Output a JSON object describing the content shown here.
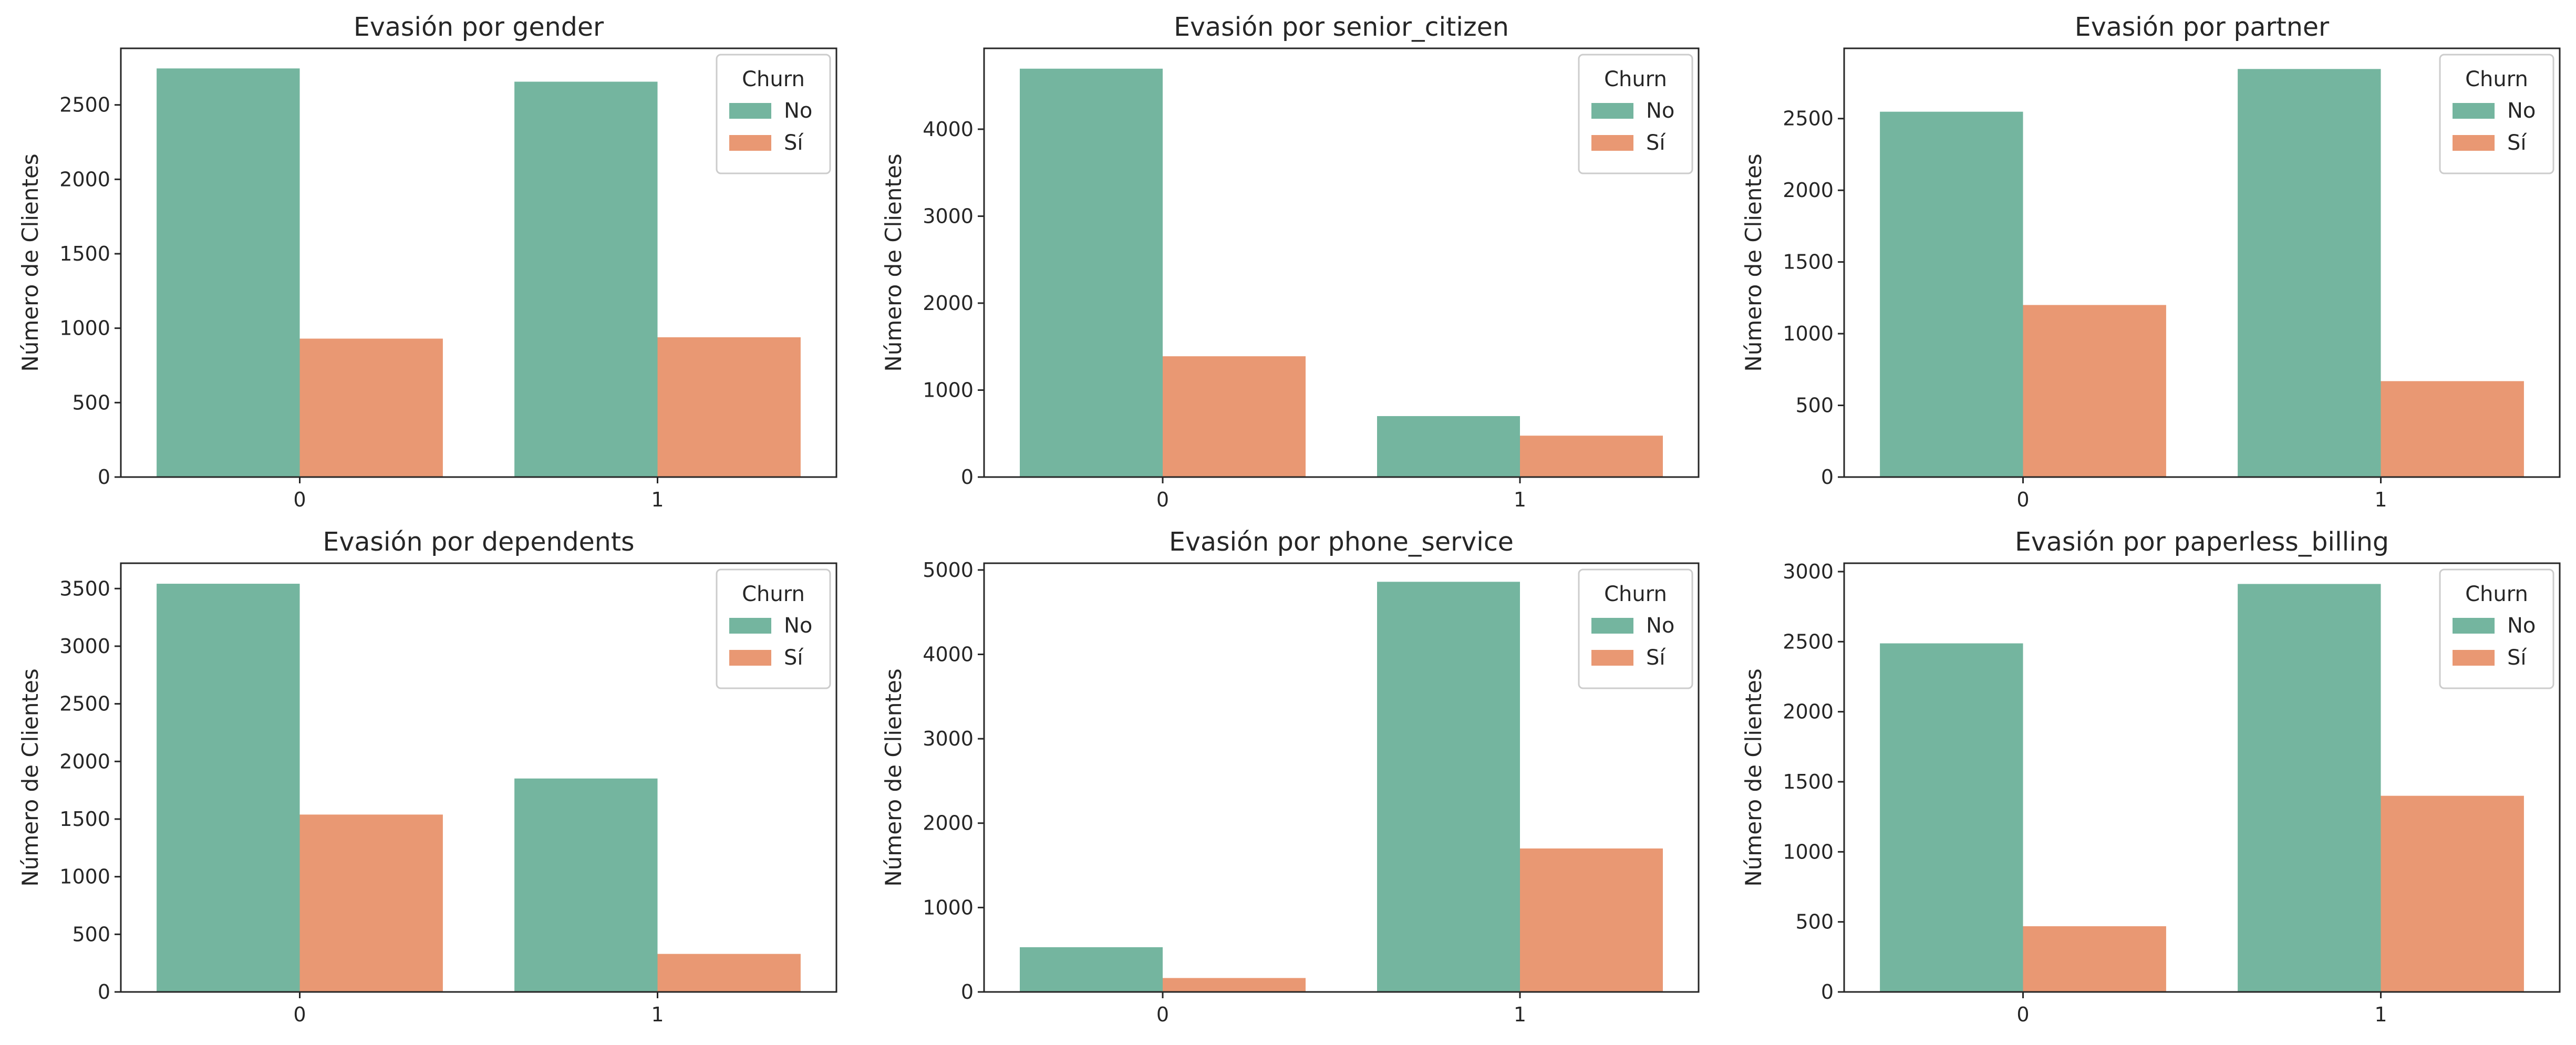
{
  "colors": {
    "No": "#74b59f",
    "Sí": "#e99873",
    "axis": "#262626",
    "legend_border": "#cccccc"
  },
  "chart_data": [
    {
      "type": "bar",
      "title": "Evasión por gender",
      "xlabel": "",
      "ylabel": "Número de Clientes",
      "categories": [
        "0",
        "1"
      ],
      "ylim": [
        0,
        2880
      ],
      "yticks": [
        0,
        500,
        1000,
        1500,
        2000,
        2500
      ],
      "series": [
        {
          "name": "No",
          "values": [
            2745,
            2656
          ]
        },
        {
          "name": "Sí",
          "values": [
            930,
            939
          ]
        }
      ],
      "legend": {
        "title": "Churn",
        "position": "top-right"
      }
    },
    {
      "type": "bar",
      "title": "Evasión por senior_citizen",
      "xlabel": "",
      "ylabel": "Número de Clientes",
      "categories": [
        "0",
        "1"
      ],
      "ylim": [
        0,
        4930
      ],
      "yticks": [
        0,
        1000,
        2000,
        3000,
        4000
      ],
      "series": [
        {
          "name": "No",
          "values": [
            4696,
            701
          ]
        },
        {
          "name": "Sí",
          "values": [
            1389,
            476
          ]
        }
      ],
      "legend": {
        "title": "Churn",
        "position": "top-right"
      }
    },
    {
      "type": "bar",
      "title": "Evasión por partner",
      "xlabel": "",
      "ylabel": "Número de Clientes",
      "categories": [
        "0",
        "1"
      ],
      "ylim": [
        0,
        2990
      ],
      "yticks": [
        0,
        500,
        1000,
        1500,
        2000,
        2500
      ],
      "series": [
        {
          "name": "No",
          "values": [
            2548,
            2846
          ]
        },
        {
          "name": "Sí",
          "values": [
            1200,
            669
          ]
        }
      ],
      "legend": {
        "title": "Churn",
        "position": "top-right"
      }
    },
    {
      "type": "bar",
      "title": "Evasión por dependents",
      "xlabel": "",
      "ylabel": "Número de Clientes",
      "categories": [
        "0",
        "1"
      ],
      "ylim": [
        0,
        3720
      ],
      "yticks": [
        0,
        500,
        1000,
        1500,
        2000,
        2500,
        3000,
        3500
      ],
      "series": [
        {
          "name": "No",
          "values": [
            3542,
            1852
          ]
        },
        {
          "name": "Sí",
          "values": [
            1539,
            330
          ]
        }
      ],
      "legend": {
        "title": "Churn",
        "position": "top-right"
      }
    },
    {
      "type": "bar",
      "title": "Evasión por phone_service",
      "xlabel": "",
      "ylabel": "Número de Clientes",
      "categories": [
        "0",
        "1"
      ],
      "ylim": [
        0,
        5080
      ],
      "yticks": [
        0,
        1000,
        2000,
        3000,
        4000,
        5000
      ],
      "series": [
        {
          "name": "No",
          "values": [
            530,
            4860
          ]
        },
        {
          "name": "Sí",
          "values": [
            165,
            1700
          ]
        }
      ],
      "legend": {
        "title": "Churn",
        "position": "top-right"
      }
    },
    {
      "type": "bar",
      "title": "Evasión por paperless_billing",
      "xlabel": "",
      "ylabel": "Número de Clientes",
      "categories": [
        "0",
        "1"
      ],
      "ylim": [
        0,
        3060
      ],
      "yticks": [
        0,
        500,
        1000,
        1500,
        2000,
        2500,
        3000
      ],
      "series": [
        {
          "name": "No",
          "values": [
            2488,
            2912
          ]
        },
        {
          "name": "Sí",
          "values": [
            469,
            1400
          ]
        }
      ],
      "legend": {
        "title": "Churn",
        "position": "top-right"
      }
    }
  ]
}
